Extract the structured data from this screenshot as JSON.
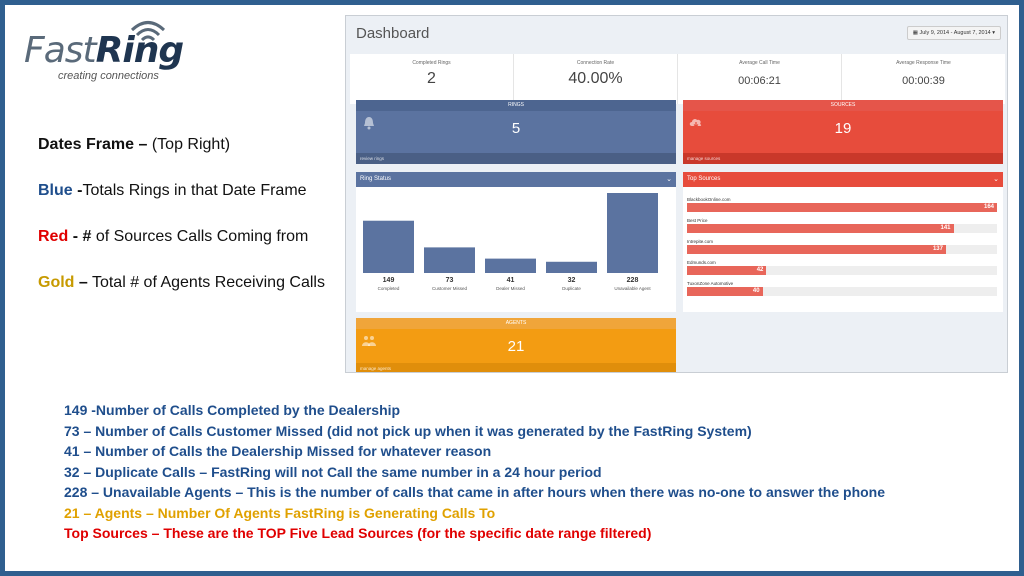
{
  "logo": {
    "word_fast": "Fast",
    "word_ring": "Ring",
    "tagline": "creating connections"
  },
  "notes": {
    "dates": {
      "label": "Dates Frame –",
      "rest": "(Top Right)"
    },
    "blue": {
      "label": "Blue",
      "dash": "-",
      "rest": "Totals Rings in that Date Frame"
    },
    "red": {
      "label": "Red",
      "dash": "- #",
      "rest": "of Sources Calls Coming from"
    },
    "gold": {
      "label": "Gold",
      "dash": "–",
      "rest": "Total # of Agents Receiving Calls"
    }
  },
  "dashboard": {
    "title": "Dashboard",
    "date_range": "July 9, 2014 - August 7, 2014",
    "stats": [
      {
        "label": "Completed Rings",
        "value": "2"
      },
      {
        "label": "Connection Rate",
        "value": "40.00%"
      },
      {
        "label": "Average Call Time",
        "value": "00:06:21"
      },
      {
        "label": "Average Response Time",
        "value": "00:00:39"
      }
    ],
    "rings": {
      "title": "RINGS",
      "value": "5",
      "footer": "review rings"
    },
    "sources": {
      "title": "SOURCES",
      "value": "19",
      "footer": "manage sources"
    },
    "agents": {
      "title": "AGENTS",
      "value": "21",
      "footer": "manage agents"
    },
    "ring_status": {
      "title": "Ring Status"
    },
    "top_sources": {
      "title": "Top Sources",
      "items": [
        {
          "name": "BlackbookOnline.com",
          "value": 164
        },
        {
          "name": "Best Price",
          "value": 141
        },
        {
          "name": "Intrepite.com",
          "value": 137
        },
        {
          "name": "Edmunds.com",
          "value": 42
        },
        {
          "name": "TuxonZone Automotive",
          "value": 40
        }
      ]
    }
  },
  "chart_data": {
    "type": "bar",
    "title": "Ring Status",
    "categories": [
      "Completed",
      "Customer Missed",
      "Dealer Missed",
      "Duplicate",
      "Unavailable Agent"
    ],
    "values": [
      149,
      73,
      41,
      32,
      228
    ],
    "ylim": [
      0,
      228
    ],
    "grid": false,
    "colors": {
      "bar": "#5b73a0"
    }
  },
  "bottom_lines": [
    "149 -Number of Calls Completed by the Dealership",
    "73 – Number of Calls Customer Missed (did not pick up when it was generated by the FastRing System)",
    "41 – Number of Calls the Dealership Missed for whatever reason",
    "32 – Duplicate Calls – FastRing will not Call the same number in a 24 hour period",
    "228 – Unavailable Agents – This is the number of calls that came in after hours when there was no-one to answer the phone",
    "21 – Agents – Number Of Agents FastRing is Generating Calls To",
    "Top Sources – These are the TOP Five Lead Sources (for the specific date range filtered)"
  ],
  "colors": {
    "blue": "#5b73a0",
    "red": "#e74c3c",
    "gold": "#f39c12",
    "text_blue": "#1f4e8c",
    "text_red": "#e00000",
    "text_gold": "#e0a100"
  }
}
